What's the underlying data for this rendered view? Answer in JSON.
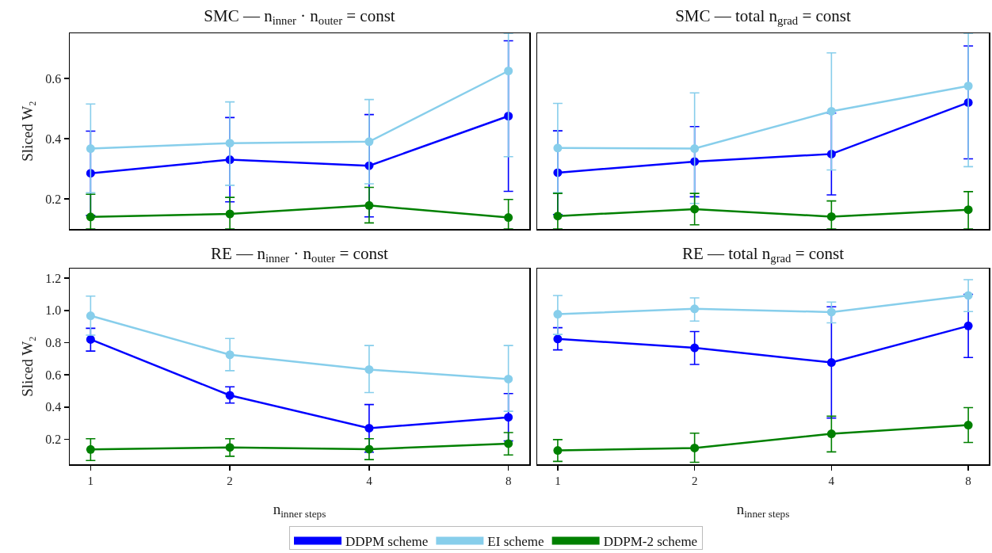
{
  "chart_data": [
    {
      "type": "line",
      "title": "SMC — n$_{inner}$ · n$_{outer}$ = const",
      "ylabel": "Sliced W₂",
      "categories": [
        "1",
        "2",
        "4",
        "8"
      ],
      "ylim": [
        0.1,
        0.75
      ],
      "yticks": [
        0.2,
        0.4,
        0.6
      ],
      "tick_labels": "y",
      "marker": "circle",
      "legend": "bottom",
      "series": [
        {
          "name": "DDPM scheme",
          "color": "#0000ff",
          "values": [
            0.285,
            0.33,
            0.31,
            0.475
          ],
          "errors": [
            [
              0.145,
              0.425
            ],
            [
              0.19,
              0.47
            ],
            [
              0.14,
              0.48
            ],
            [
              0.225,
              0.725
            ]
          ]
        },
        {
          "name": "EI scheme",
          "color": "#87ceeb",
          "values": [
            0.367,
            0.385,
            0.39,
            0.625
          ],
          "errors": [
            [
              0.22,
              0.515
            ],
            [
              0.245,
              0.522
            ],
            [
              0.25,
              0.53
            ],
            [
              0.34,
              0.75
            ]
          ]
        },
        {
          "name": "DDPM-2 scheme",
          "color": "#008000",
          "values": [
            0.14,
            0.15,
            0.178,
            0.138
          ],
          "errors": [
            [
              0.1,
              0.215
            ],
            [
              0.1,
              0.205
            ],
            [
              0.12,
              0.238
            ],
            [
              0.1,
              0.198
            ]
          ]
        }
      ]
    },
    {
      "type": "line",
      "title": "SMC — total n$_{grad}$ = const",
      "categories": [
        "1",
        "2",
        "4",
        "8"
      ],
      "ylim": [
        0.1,
        0.75
      ],
      "yticks": [
        0.2,
        0.4,
        0.6
      ],
      "tick_labels": false,
      "marker": "circle",
      "series": [
        {
          "color": "#0000ff",
          "values": [
            0.287,
            0.324,
            0.349,
            0.52
          ],
          "errors": [
            [
              0.148,
              0.426
            ],
            [
              0.207,
              0.44
            ],
            [
              0.213,
              0.485
            ],
            [
              0.333,
              0.708
            ]
          ]
        },
        {
          "color": "#87ceeb",
          "values": [
            0.369,
            0.367,
            0.491,
            0.575
          ],
          "errors": [
            [
              0.221,
              0.517
            ],
            [
              0.185,
              0.552
            ],
            [
              0.296,
              0.685
            ],
            [
              0.307,
              0.75
            ]
          ]
        },
        {
          "color": "#008000",
          "values": [
            0.143,
            0.166,
            0.141,
            0.164
          ],
          "errors": [
            [
              0.1,
              0.218
            ],
            [
              0.114,
              0.218
            ],
            [
              0.1,
              0.193
            ],
            [
              0.1,
              0.224
            ]
          ]
        }
      ]
    },
    {
      "type": "line",
      "title": "RE — n$_{inner}$ · n$_{outer}$ = const",
      "xlabel": "n$_{inner steps}$",
      "ylabel": "Sliced W₂",
      "categories": [
        "1",
        "2",
        "4",
        "8"
      ],
      "ylim": [
        0.045,
        1.26
      ],
      "yticks": [
        0.2,
        0.4,
        0.6,
        0.8,
        {
          "value": 1,
          "label": "1.0"
        },
        1.2
      ],
      "marker": "circle",
      "series": [
        {
          "color": "#0000ff",
          "values": [
            0.82,
            0.473,
            0.269,
            0.337
          ],
          "errors": [
            [
              0.748,
              0.889
            ],
            [
              0.425,
              0.526
            ],
            [
              0.12,
              0.416
            ],
            [
              0.19,
              0.484
            ]
          ]
        },
        {
          "color": "#87ceeb",
          "values": [
            0.967,
            0.725,
            0.633,
            0.574
          ],
          "errors": [
            [
              0.847,
              1.089
            ],
            [
              0.626,
              0.826
            ],
            [
              0.49,
              0.782
            ],
            [
              0.374,
              0.782
            ]
          ]
        },
        {
          "color": "#008000",
          "values": [
            0.137,
            0.15,
            0.139,
            0.173
          ],
          "errors": [
            [
              0.068,
              0.204
            ],
            [
              0.095,
              0.204
            ],
            [
              0.074,
              0.204
            ],
            [
              0.103,
              0.242
            ]
          ]
        }
      ]
    },
    {
      "type": "line",
      "title": "RE — total n$_{grad}$ = const",
      "xlabel": "n$_{inner steps}$",
      "categories": [
        "1",
        "2",
        "4",
        "8"
      ],
      "ylim": [
        0.045,
        1.26
      ],
      "yticks": [
        0.2,
        0.4,
        0.6,
        0.8,
        1,
        1.2
      ],
      "tick_labels": "x",
      "marker": "circle",
      "series": [
        {
          "color": "#0000ff",
          "values": [
            0.823,
            0.768,
            0.677,
            0.904
          ],
          "errors": [
            [
              0.755,
              0.893
            ],
            [
              0.665,
              0.869
            ],
            [
              0.332,
              1.023
            ],
            [
              0.708,
              1.1
            ]
          ]
        },
        {
          "color": "#87ceeb",
          "values": [
            0.977,
            1.01,
            0.99,
            1.093
          ],
          "errors": [
            [
              0.851,
              1.093
            ],
            [
              0.934,
              1.078
            ],
            [
              0.923,
              1.052
            ],
            [
              0.993,
              1.191
            ]
          ]
        },
        {
          "color": "#008000",
          "values": [
            0.131,
            0.146,
            0.234,
            0.288
          ],
          "errors": [
            [
              0.063,
              0.198
            ],
            [
              0.057,
              0.238
            ],
            [
              0.122,
              0.344
            ],
            [
              0.18,
              0.397
            ]
          ]
        }
      ]
    }
  ]
}
